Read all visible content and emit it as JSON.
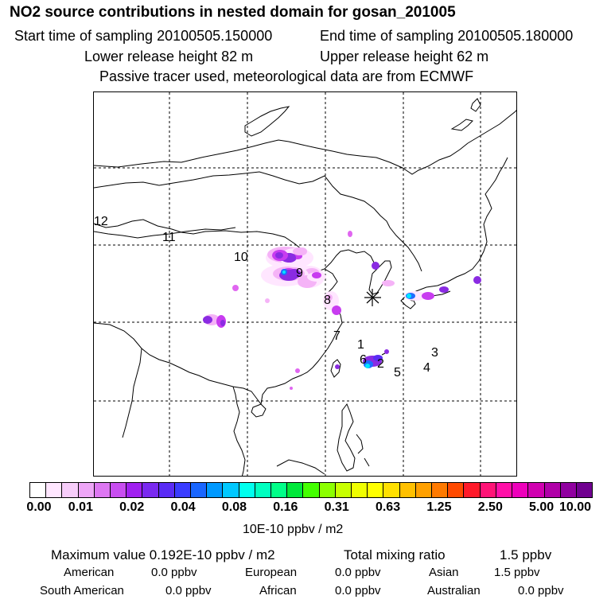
{
  "header": {
    "title": "NO2 source contributions in nested domain for gosan_201005",
    "start_time": "Start time of sampling 20100505.150000",
    "end_time": "End time of sampling 20100505.180000",
    "lower_release": "Lower release height   82 m",
    "upper_release": "Upper release height   62 m",
    "tracer_note": "Passive tracer used, meteorological data are from ECMWF"
  },
  "map": {
    "trajectory_labels": [
      "1",
      "2",
      "3",
      "4",
      "5",
      "6",
      "7",
      "8",
      "9",
      "10",
      "11",
      "12"
    ],
    "receptor_icon": "asterisk-star-icon",
    "plume_colors": [
      "#ffe6ff",
      "#f5b3f7",
      "#e066f0",
      "#c83cf0",
      "#8a2be2",
      "#1e6cff",
      "#00e5ff"
    ]
  },
  "colorbar": {
    "colors": [
      "#ffffff",
      "#ffe6ff",
      "#f7cdfa",
      "#eea6f7",
      "#dd77f2",
      "#c84ef0",
      "#a020f0",
      "#7a2af0",
      "#5a2cf5",
      "#3a3cff",
      "#1a66ff",
      "#0099ff",
      "#00c8ff",
      "#00ffee",
      "#00ffc0",
      "#00ff88",
      "#00e83a",
      "#44ff00",
      "#8cff00",
      "#c8ff00",
      "#f0ff00",
      "#ffff00",
      "#ffe000",
      "#ffc000",
      "#ffa000",
      "#ff7a00",
      "#ff4a00",
      "#ff1a2a",
      "#ff1477",
      "#ff10a8",
      "#ee00bb",
      "#d000b0",
      "#b000a8",
      "#9000a0",
      "#700090"
    ],
    "labels": [
      "0.00",
      "0.01",
      "0.02",
      "0.04",
      "0.08",
      "0.16",
      "0.31",
      "0.63",
      "1.25",
      "2.50",
      "5.00",
      "10.00"
    ],
    "units": "10E-10 ppbv / m2"
  },
  "summary": {
    "max_label": "Maximum value  0.192E-10 ppbv / m2",
    "total_label": "Total mixing ratio",
    "total_value": "1.5 ppbv",
    "regions": [
      {
        "name": "American",
        "value": "0.0 ppbv"
      },
      {
        "name": "European",
        "value": "0.0 ppbv"
      },
      {
        "name": "Asian",
        "value": "1.5 ppbv"
      },
      {
        "name": "South American",
        "value": "0.0 ppbv"
      },
      {
        "name": "African",
        "value": "0.0 ppbv"
      },
      {
        "name": "Australian",
        "value": "0.0 ppbv"
      }
    ]
  }
}
